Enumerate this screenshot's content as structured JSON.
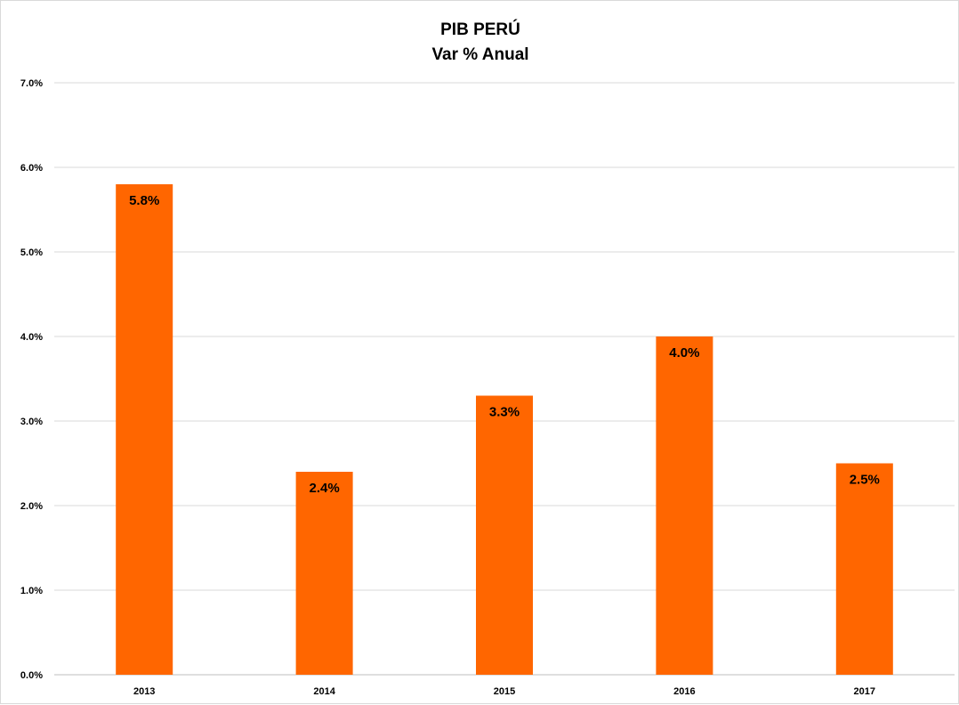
{
  "chart_data": {
    "type": "bar",
    "title": "PIB PERÚ",
    "subtitle": "Var % Anual",
    "xlabel": "",
    "ylabel": "",
    "categories": [
      "2013",
      "2014",
      "2015",
      "2016",
      "2017"
    ],
    "values": [
      5.8,
      2.4,
      3.3,
      4.0,
      2.5
    ],
    "value_labels": [
      "5.8%",
      "2.4%",
      "3.3%",
      "4.0%",
      "2.5%"
    ],
    "ylim": [
      0,
      7
    ],
    "yticks": [
      0,
      1,
      2,
      3,
      4,
      5,
      6,
      7
    ],
    "ytick_labels": [
      "0.0%",
      "1.0%",
      "2.0%",
      "3.0%",
      "4.0%",
      "5.0%",
      "6.0%",
      "7.0%"
    ],
    "grid": true,
    "legend": "none",
    "bar_color": "#ff6600"
  }
}
